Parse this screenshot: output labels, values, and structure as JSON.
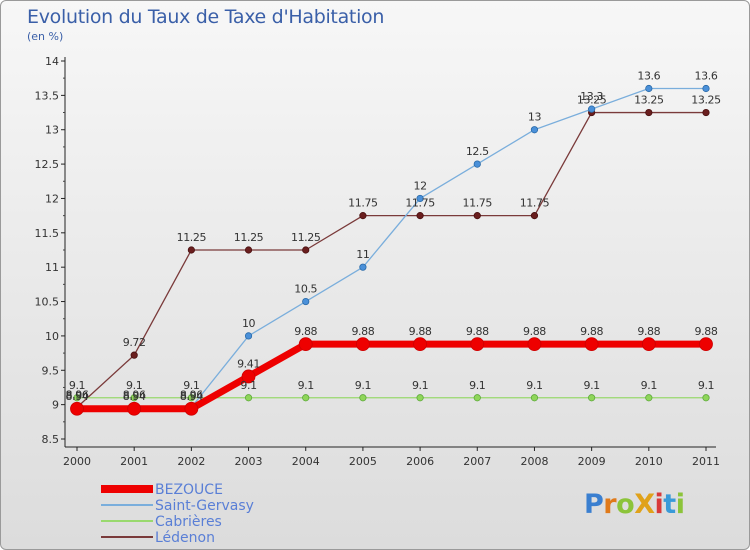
{
  "header": {
    "title": "Evolution du Taux de Taxe d'Habitation",
    "subtitle": "(en %)"
  },
  "logo": {
    "text": "ProXiti"
  },
  "chart_data": {
    "type": "line",
    "x": [
      "2000",
      "2001",
      "2002",
      "2003",
      "2004",
      "2005",
      "2006",
      "2007",
      "2008",
      "2009",
      "2010",
      "2011"
    ],
    "ylim": [
      8.5,
      14
    ],
    "yticks": [
      8.5,
      9,
      9.5,
      10,
      10.5,
      11,
      11.5,
      12,
      12.5,
      13,
      13.5,
      14
    ],
    "grid": false,
    "legend": "bottom-left",
    "series": [
      {
        "name": "Lédenon",
        "color": "#7a3a3a",
        "values": [
          8.96,
          9.72,
          11.25,
          11.25,
          11.25,
          11.75,
          11.75,
          11.75,
          11.75,
          13.25,
          13.25,
          13.25
        ],
        "labels": [
          "8.96",
          "9.72",
          "11.25",
          "11.25",
          "11.25",
          "11.75",
          "11.75",
          "11.75",
          "11.75",
          "13.25",
          "13.25",
          "13.25"
        ]
      },
      {
        "name": "Cabrières",
        "color": "#99d96e",
        "values": [
          9.1,
          9.1,
          9.1,
          9.1,
          9.1,
          9.1,
          9.1,
          9.1,
          9.1,
          9.1,
          9.1,
          9.1
        ],
        "labels": [
          "9.1",
          "9.1",
          "9.1",
          "9.1",
          "9.1",
          "9.1",
          "9.1",
          "9.1",
          "9.1",
          "9.1",
          "9.1",
          "9.1"
        ]
      },
      {
        "name": "Saint-Gervasy",
        "color": "#7aaedc",
        "values": [
          8.96,
          8.96,
          8.96,
          10,
          10.5,
          11,
          12,
          12.5,
          13,
          13.3,
          13.6,
          13.6
        ],
        "labels": [
          "8.96",
          "8.96",
          "8.96",
          "10",
          "10.5",
          "11",
          "12",
          "12.5",
          "13",
          "13.3",
          "13.6",
          "13.6"
        ]
      },
      {
        "name": "BEZOUCE",
        "color": "#ee0000",
        "values": [
          8.94,
          8.94,
          8.94,
          9.41,
          9.88,
          9.88,
          9.88,
          9.88,
          9.88,
          9.88,
          9.88,
          9.88
        ],
        "labels": [
          "8.94",
          "8.94",
          "8.94",
          "9.41",
          "9.88",
          "9.88",
          "9.88",
          "9.88",
          "9.88",
          "9.88",
          "9.88",
          "9.88"
        ]
      }
    ],
    "legend_order": [
      "BEZOUCE",
      "Saint-Gervasy",
      "Cabrières",
      "Lédenon"
    ]
  }
}
